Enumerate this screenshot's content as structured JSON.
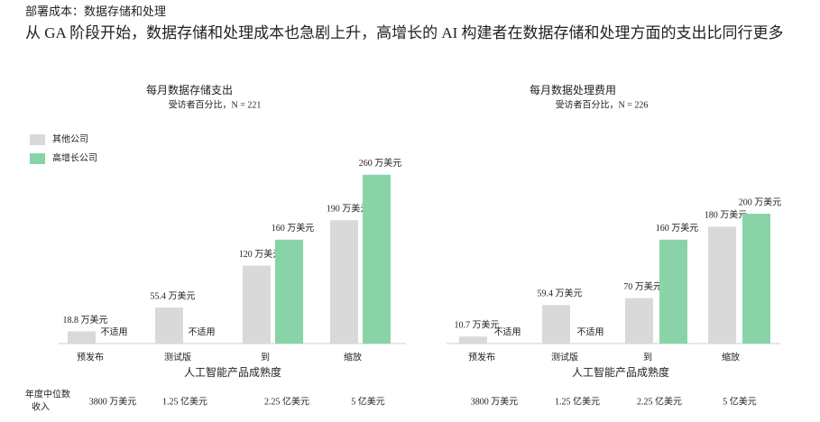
{
  "header": {
    "supertitle": "部署成本：数据存储和处理",
    "title": "从 GA 阶段开始，数据存储和处理成本也急剧上升，高增长的 AI 构建者在数据存储和处理方面的支出比同行更多"
  },
  "chart_data": [
    {
      "type": "bar",
      "title": "每月数据存储支出",
      "subtitle": "受访者百分比，N = 221",
      "x_label": "人工智能产品成熟度",
      "categories": [
        "预发布",
        "测试版",
        "到",
        "缩放"
      ],
      "series": [
        {
          "name": "其他公司",
          "color": "#d9d9d9",
          "values": [
            18.8,
            55.4,
            120,
            190
          ],
          "value_labels": [
            "18.8 万美元",
            "55.4 万美元",
            "120 万美元",
            "190 万美元"
          ]
        },
        {
          "name": "高增长公司",
          "color": "#88d4a8",
          "values": [
            null,
            null,
            160,
            260
          ],
          "value_labels": [
            "不适用",
            "不适用",
            "160 万美元",
            "260 万美元"
          ]
        }
      ]
    },
    {
      "type": "bar",
      "title": "每月数据处理费用",
      "subtitle": "受访者百分比，N = 226",
      "x_label": "人工智能产品成熟度",
      "categories": [
        "预发布",
        "测试版",
        "到",
        "缩放"
      ],
      "series": [
        {
          "color": "#d9d9d9",
          "values": [
            10.7,
            59.4,
            70,
            180
          ],
          "value_labels": [
            "10.7 万美元",
            "59.4 万美元",
            "70 万美元",
            "180 万美元"
          ]
        },
        {
          "color": "#88d4a8",
          "values": [
            null,
            null,
            160,
            200
          ],
          "value_labels": [
            "不适用",
            "不适用",
            "160 万美元",
            "200 万美元"
          ]
        }
      ]
    }
  ],
  "revenue": {
    "label": [
      "年度中位数",
      "收入"
    ],
    "values": [
      "3800 万美元",
      "1.25 亿美元",
      "2.25 亿美元",
      "5 亿美元"
    ]
  }
}
